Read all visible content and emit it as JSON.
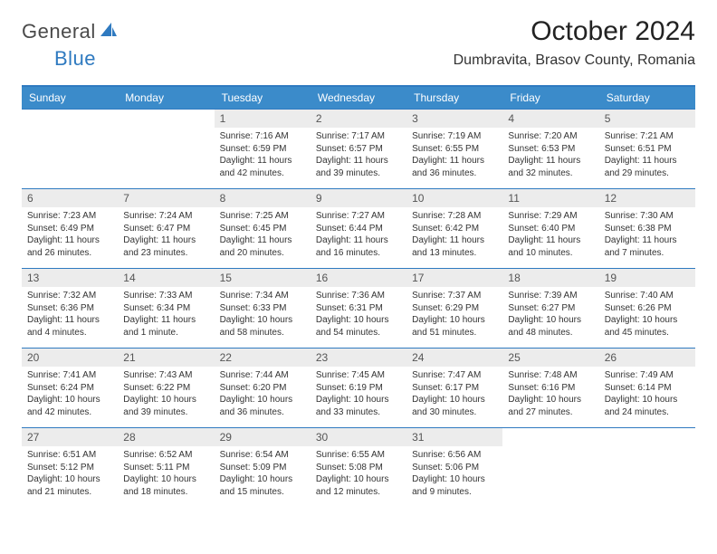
{
  "brand": {
    "word1": "General",
    "word2": "Blue"
  },
  "title": "October 2024",
  "location": "Dumbravita, Brasov County, Romania",
  "colors": {
    "header_bg": "#3b8bca",
    "header_text": "#ffffff",
    "divider": "#2f7ac0",
    "daynum_bg": "#ececec",
    "body_bg": "#ffffff",
    "text": "#222222",
    "logo_blue": "#2f7ac0"
  },
  "typography": {
    "title_fontsize": 30,
    "location_fontsize": 16,
    "dayheader_fontsize": 12,
    "daynum_fontsize": 12,
    "body_fontsize": 10
  },
  "day_headers": [
    "Sunday",
    "Monday",
    "Tuesday",
    "Wednesday",
    "Thursday",
    "Friday",
    "Saturday"
  ],
  "weeks": [
    [
      null,
      null,
      {
        "n": "1",
        "sr": "Sunrise: 7:16 AM",
        "ss": "Sunset: 6:59 PM",
        "dl": "Daylight: 11 hours and 42 minutes."
      },
      {
        "n": "2",
        "sr": "Sunrise: 7:17 AM",
        "ss": "Sunset: 6:57 PM",
        "dl": "Daylight: 11 hours and 39 minutes."
      },
      {
        "n": "3",
        "sr": "Sunrise: 7:19 AM",
        "ss": "Sunset: 6:55 PM",
        "dl": "Daylight: 11 hours and 36 minutes."
      },
      {
        "n": "4",
        "sr": "Sunrise: 7:20 AM",
        "ss": "Sunset: 6:53 PM",
        "dl": "Daylight: 11 hours and 32 minutes."
      },
      {
        "n": "5",
        "sr": "Sunrise: 7:21 AM",
        "ss": "Sunset: 6:51 PM",
        "dl": "Daylight: 11 hours and 29 minutes."
      }
    ],
    [
      {
        "n": "6",
        "sr": "Sunrise: 7:23 AM",
        "ss": "Sunset: 6:49 PM",
        "dl": "Daylight: 11 hours and 26 minutes."
      },
      {
        "n": "7",
        "sr": "Sunrise: 7:24 AM",
        "ss": "Sunset: 6:47 PM",
        "dl": "Daylight: 11 hours and 23 minutes."
      },
      {
        "n": "8",
        "sr": "Sunrise: 7:25 AM",
        "ss": "Sunset: 6:45 PM",
        "dl": "Daylight: 11 hours and 20 minutes."
      },
      {
        "n": "9",
        "sr": "Sunrise: 7:27 AM",
        "ss": "Sunset: 6:44 PM",
        "dl": "Daylight: 11 hours and 16 minutes."
      },
      {
        "n": "10",
        "sr": "Sunrise: 7:28 AM",
        "ss": "Sunset: 6:42 PM",
        "dl": "Daylight: 11 hours and 13 minutes."
      },
      {
        "n": "11",
        "sr": "Sunrise: 7:29 AM",
        "ss": "Sunset: 6:40 PM",
        "dl": "Daylight: 11 hours and 10 minutes."
      },
      {
        "n": "12",
        "sr": "Sunrise: 7:30 AM",
        "ss": "Sunset: 6:38 PM",
        "dl": "Daylight: 11 hours and 7 minutes."
      }
    ],
    [
      {
        "n": "13",
        "sr": "Sunrise: 7:32 AM",
        "ss": "Sunset: 6:36 PM",
        "dl": "Daylight: 11 hours and 4 minutes."
      },
      {
        "n": "14",
        "sr": "Sunrise: 7:33 AM",
        "ss": "Sunset: 6:34 PM",
        "dl": "Daylight: 11 hours and 1 minute."
      },
      {
        "n": "15",
        "sr": "Sunrise: 7:34 AM",
        "ss": "Sunset: 6:33 PM",
        "dl": "Daylight: 10 hours and 58 minutes."
      },
      {
        "n": "16",
        "sr": "Sunrise: 7:36 AM",
        "ss": "Sunset: 6:31 PM",
        "dl": "Daylight: 10 hours and 54 minutes."
      },
      {
        "n": "17",
        "sr": "Sunrise: 7:37 AM",
        "ss": "Sunset: 6:29 PM",
        "dl": "Daylight: 10 hours and 51 minutes."
      },
      {
        "n": "18",
        "sr": "Sunrise: 7:39 AM",
        "ss": "Sunset: 6:27 PM",
        "dl": "Daylight: 10 hours and 48 minutes."
      },
      {
        "n": "19",
        "sr": "Sunrise: 7:40 AM",
        "ss": "Sunset: 6:26 PM",
        "dl": "Daylight: 10 hours and 45 minutes."
      }
    ],
    [
      {
        "n": "20",
        "sr": "Sunrise: 7:41 AM",
        "ss": "Sunset: 6:24 PM",
        "dl": "Daylight: 10 hours and 42 minutes."
      },
      {
        "n": "21",
        "sr": "Sunrise: 7:43 AM",
        "ss": "Sunset: 6:22 PM",
        "dl": "Daylight: 10 hours and 39 minutes."
      },
      {
        "n": "22",
        "sr": "Sunrise: 7:44 AM",
        "ss": "Sunset: 6:20 PM",
        "dl": "Daylight: 10 hours and 36 minutes."
      },
      {
        "n": "23",
        "sr": "Sunrise: 7:45 AM",
        "ss": "Sunset: 6:19 PM",
        "dl": "Daylight: 10 hours and 33 minutes."
      },
      {
        "n": "24",
        "sr": "Sunrise: 7:47 AM",
        "ss": "Sunset: 6:17 PM",
        "dl": "Daylight: 10 hours and 30 minutes."
      },
      {
        "n": "25",
        "sr": "Sunrise: 7:48 AM",
        "ss": "Sunset: 6:16 PM",
        "dl": "Daylight: 10 hours and 27 minutes."
      },
      {
        "n": "26",
        "sr": "Sunrise: 7:49 AM",
        "ss": "Sunset: 6:14 PM",
        "dl": "Daylight: 10 hours and 24 minutes."
      }
    ],
    [
      {
        "n": "27",
        "sr": "Sunrise: 6:51 AM",
        "ss": "Sunset: 5:12 PM",
        "dl": "Daylight: 10 hours and 21 minutes."
      },
      {
        "n": "28",
        "sr": "Sunrise: 6:52 AM",
        "ss": "Sunset: 5:11 PM",
        "dl": "Daylight: 10 hours and 18 minutes."
      },
      {
        "n": "29",
        "sr": "Sunrise: 6:54 AM",
        "ss": "Sunset: 5:09 PM",
        "dl": "Daylight: 10 hours and 15 minutes."
      },
      {
        "n": "30",
        "sr": "Sunrise: 6:55 AM",
        "ss": "Sunset: 5:08 PM",
        "dl": "Daylight: 10 hours and 12 minutes."
      },
      {
        "n": "31",
        "sr": "Sunrise: 6:56 AM",
        "ss": "Sunset: 5:06 PM",
        "dl": "Daylight: 10 hours and 9 minutes."
      },
      null,
      null
    ]
  ]
}
